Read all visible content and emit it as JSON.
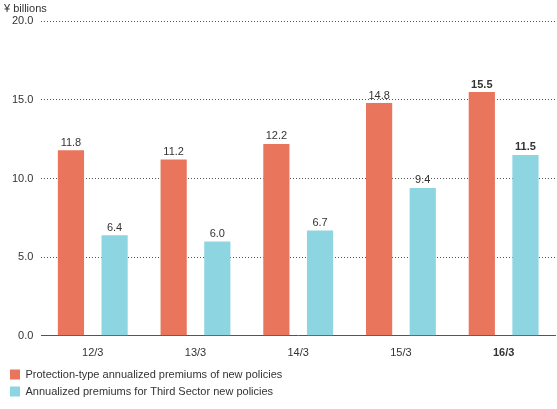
{
  "chart_data": {
    "type": "bar",
    "y_label": "¥ billions",
    "categories": [
      "12/3",
      "13/3",
      "14/3",
      "15/3",
      "16/3"
    ],
    "series": [
      {
        "name": "Protection-type annualized premiums of new policies",
        "color": "#e9765c",
        "values": [
          11.8,
          11.2,
          12.2,
          14.8,
          15.5
        ],
        "value_labels": [
          "11.8",
          "11.2",
          "12.2",
          "14.8",
          "15.5"
        ]
      },
      {
        "name": "Annualized premiums for Third Sector new policies",
        "color": "#8ed5e2",
        "values": [
          6.4,
          6.0,
          6.7,
          9.4,
          11.5
        ],
        "value_labels": [
          "6.4",
          "6.0",
          "6.7",
          "9.4",
          "11.5"
        ]
      }
    ],
    "ylim": [
      0,
      20
    ],
    "yticks": [
      {
        "value": 0,
        "label": "0.0"
      },
      {
        "value": 5,
        "label": "5.0"
      },
      {
        "value": 10,
        "label": "10.0"
      },
      {
        "value": 15,
        "label": "15.0"
      },
      {
        "value": 20,
        "label": "20.0"
      }
    ],
    "grid": true,
    "legend": "bottom",
    "data_labels": true
  }
}
